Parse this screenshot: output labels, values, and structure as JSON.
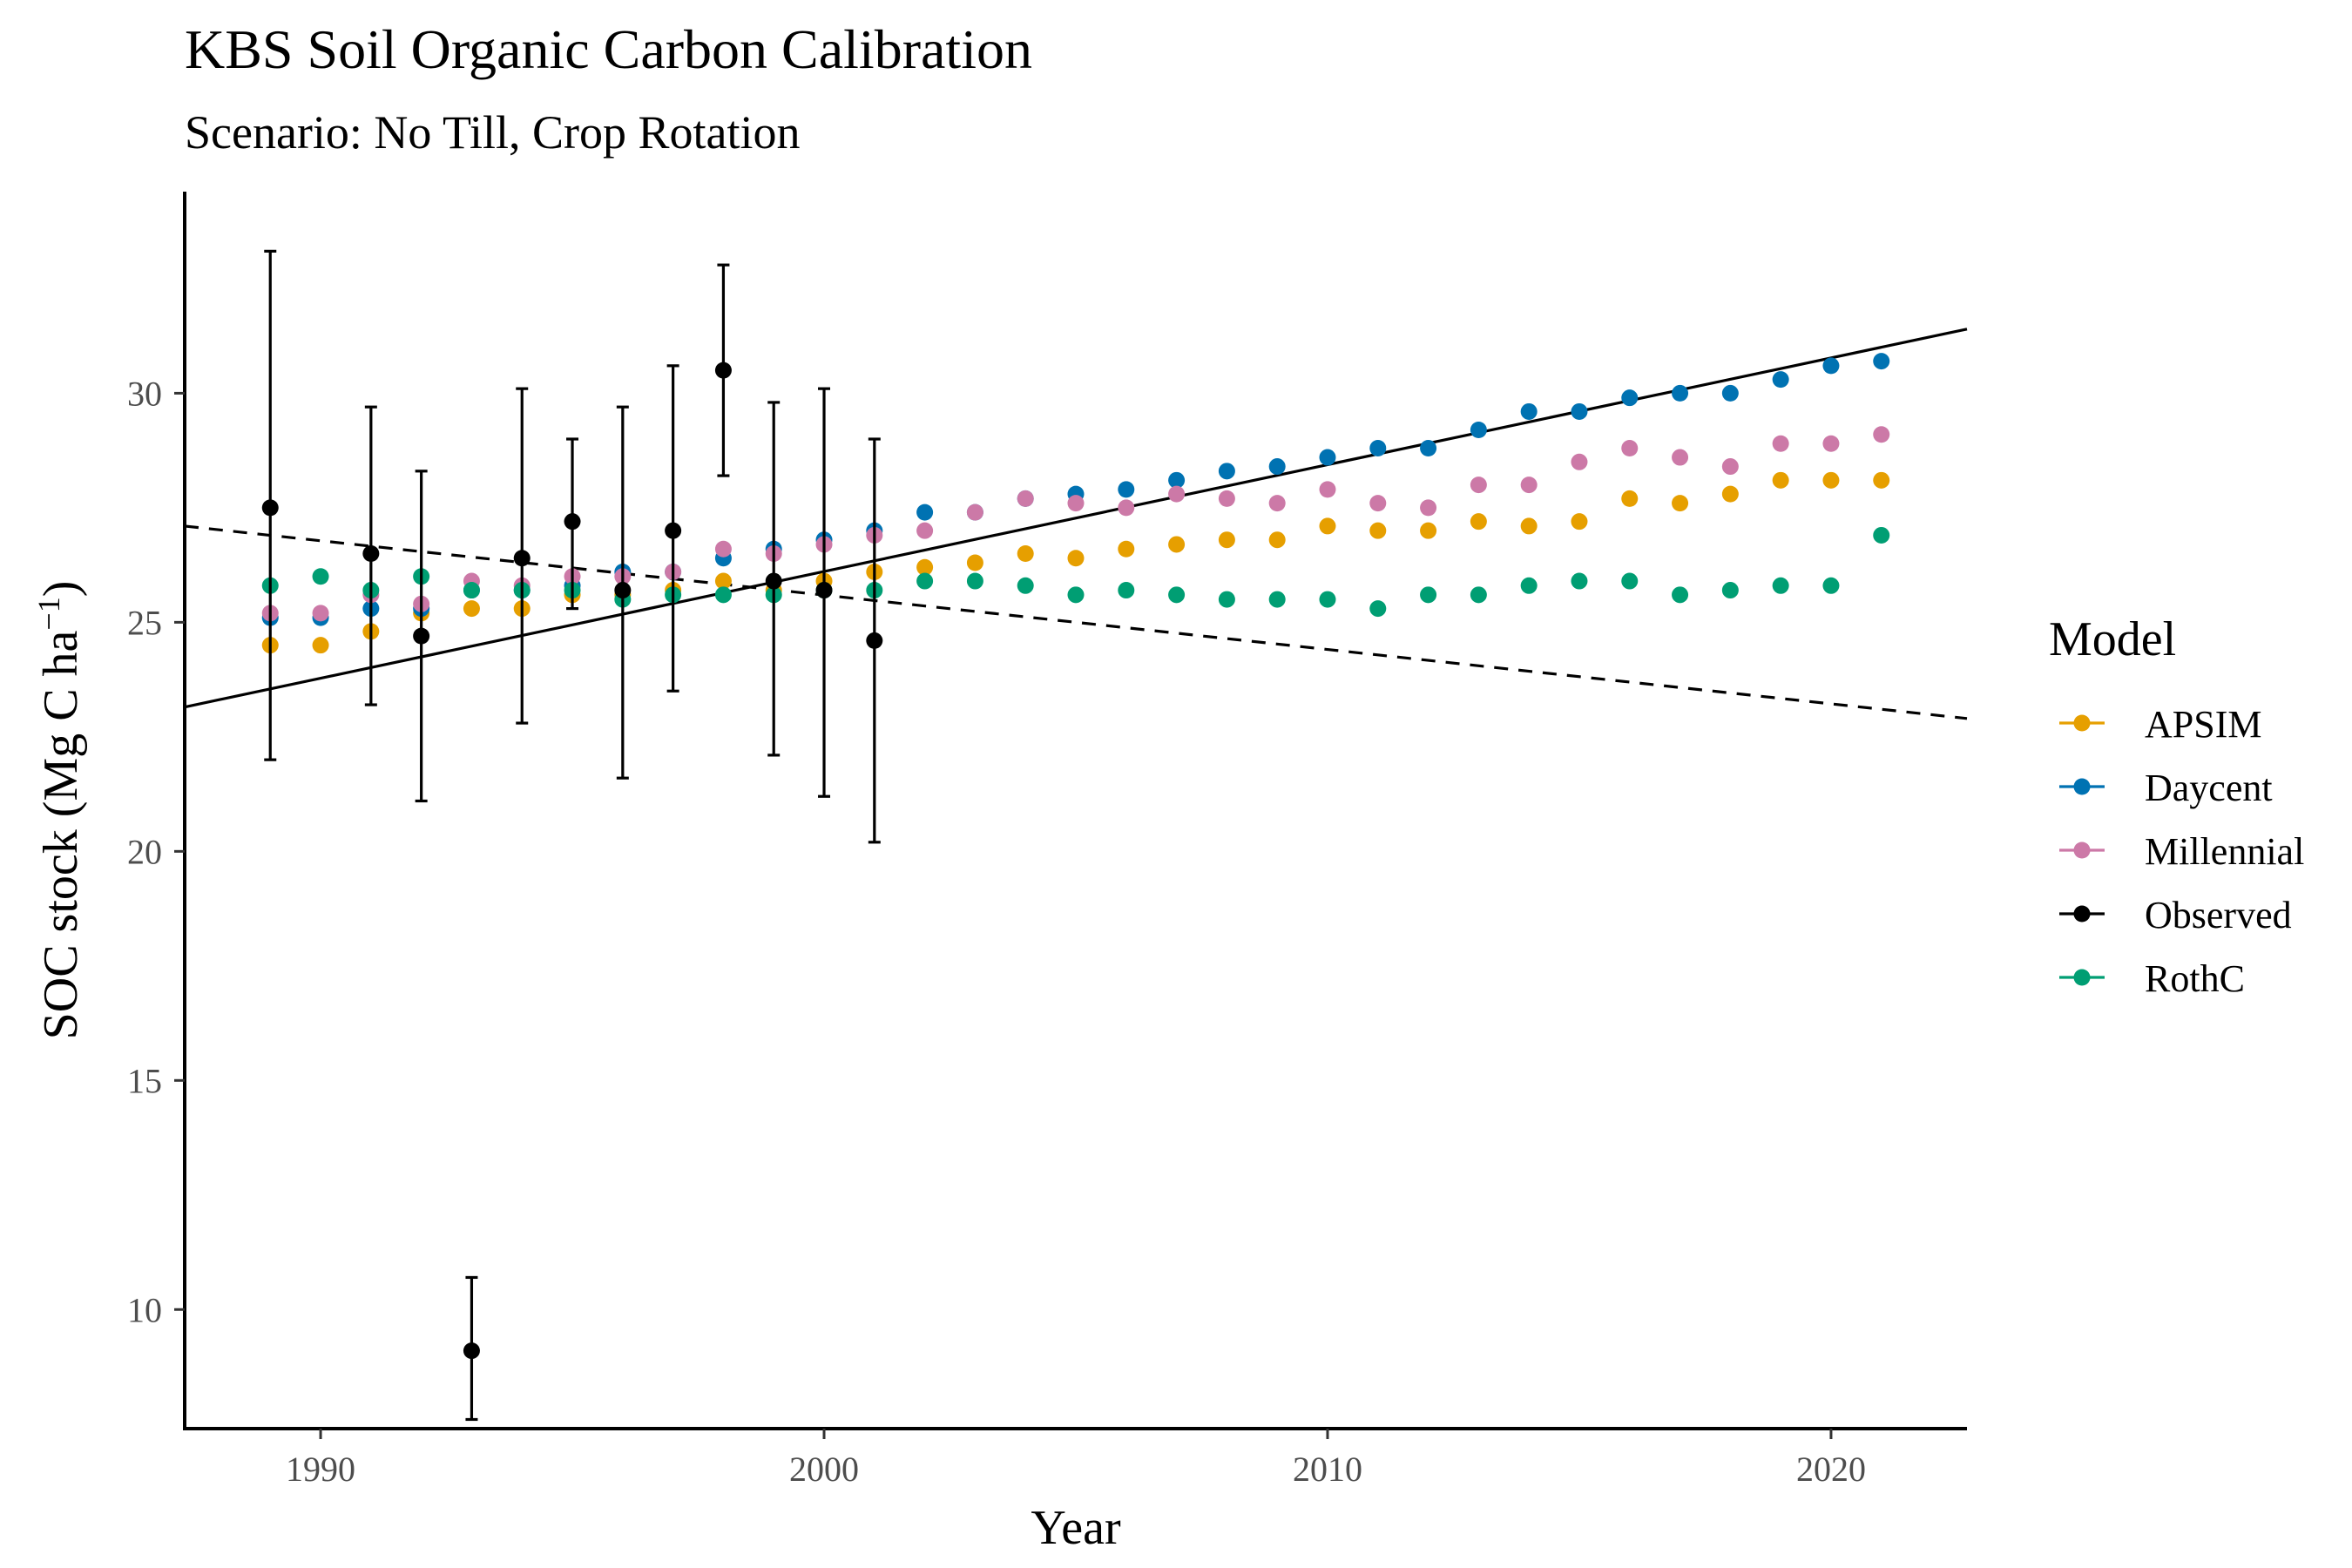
{
  "chart_data": {
    "type": "scatter",
    "title": "KBS Soil Organic Carbon Calibration",
    "subtitle": "Scenario: No Till, Crop Rotation",
    "xlabel": "Year",
    "ylabel": "SOC stock (Mg C ha",
    "ylabel_sup": "−1",
    "ylabel_close": ")",
    "xlim": [
      1987.3,
      2022.7
    ],
    "ylim": [
      7.4,
      34.4
    ],
    "x_ticks": [
      1990,
      2000,
      2010,
      2020
    ],
    "y_ticks": [
      10,
      15,
      20,
      25,
      30
    ],
    "grid": false,
    "legend_title": "Model",
    "legend_position": "right",
    "series": [
      {
        "name": "APSIM",
        "color": "#E69F00",
        "x": [
          1989,
          1990,
          1991,
          1992,
          1993,
          1994,
          1995,
          1996,
          1997,
          1998,
          1999,
          2000,
          2001,
          2002,
          2003,
          2004,
          2005,
          2006,
          2007,
          2008,
          2009,
          2010,
          2011,
          2012,
          2013,
          2014,
          2015,
          2016,
          2017,
          2018,
          2019,
          2020,
          2021
        ],
        "y": [
          24.5,
          24.5,
          24.8,
          25.2,
          25.3,
          25.3,
          25.6,
          25.6,
          25.7,
          25.9,
          25.7,
          25.9,
          26.1,
          26.2,
          26.3,
          26.5,
          26.4,
          26.6,
          26.7,
          26.8,
          26.8,
          27.1,
          27.0,
          27.0,
          27.2,
          27.1,
          27.2,
          27.7,
          27.6,
          27.8,
          28.1,
          28.1,
          28.1
        ]
      },
      {
        "name": "Daycent",
        "color": "#0072B2",
        "x": [
          1989,
          1990,
          1991,
          1992,
          1993,
          1994,
          1995,
          1996,
          1997,
          1998,
          1999,
          2000,
          2001,
          2002,
          2003,
          2004,
          2005,
          2006,
          2007,
          2008,
          2009,
          2010,
          2011,
          2012,
          2013,
          2014,
          2015,
          2016,
          2017,
          2018,
          2019,
          2020,
          2021
        ],
        "y": [
          25.1,
          25.1,
          25.3,
          25.3,
          25.7,
          25.7,
          25.8,
          26.1,
          26.1,
          26.4,
          26.6,
          26.8,
          27.0,
          27.4,
          27.4,
          27.7,
          27.8,
          27.9,
          28.1,
          28.3,
          28.4,
          28.6,
          28.8,
          28.8,
          29.2,
          29.6,
          29.6,
          29.9,
          30.0,
          30.0,
          30.3,
          30.6,
          30.7
        ]
      },
      {
        "name": "Millennial",
        "color": "#CC79A7",
        "x": [
          1989,
          1990,
          1991,
          1992,
          1993,
          1994,
          1995,
          1996,
          1997,
          1998,
          1999,
          2000,
          2001,
          2002,
          2003,
          2004,
          2005,
          2006,
          2007,
          2008,
          2009,
          2010,
          2011,
          2012,
          2013,
          2014,
          2015,
          2016,
          2017,
          2018,
          2019,
          2020,
          2021
        ],
        "y": [
          25.2,
          25.2,
          25.6,
          25.4,
          25.9,
          25.8,
          26.0,
          26.0,
          26.1,
          26.6,
          26.5,
          26.7,
          26.9,
          27.0,
          27.4,
          27.7,
          27.6,
          27.5,
          27.8,
          27.7,
          27.6,
          27.9,
          27.6,
          27.5,
          28.0,
          28.0,
          28.5,
          28.8,
          28.6,
          28.4,
          28.9,
          28.9,
          29.1
        ]
      },
      {
        "name": "Observed",
        "color": "#000000",
        "x": [
          1989,
          1991,
          1992,
          1993,
          1994,
          1995,
          1996,
          1997,
          1998,
          1999,
          2000,
          2001
        ],
        "y": [
          27.5,
          26.5,
          24.7,
          9.1,
          26.4,
          27.2,
          25.7,
          27.0,
          30.5,
          25.9,
          25.7,
          24.6
        ],
        "err_low": [
          22.0,
          23.2,
          21.1,
          7.6,
          22.8,
          25.3,
          21.6,
          23.5,
          28.2,
          22.1,
          21.2,
          20.2
        ],
        "err_high": [
          33.1,
          29.7,
          28.3,
          10.7,
          30.1,
          29.0,
          29.7,
          30.6,
          32.8,
          29.8,
          30.1,
          29.0
        ]
      },
      {
        "name": "RothC",
        "color": "#009E73",
        "x": [
          1989,
          1990,
          1991,
          1992,
          1993,
          1994,
          1995,
          1996,
          1997,
          1998,
          1999,
          2000,
          2001,
          2002,
          2003,
          2004,
          2005,
          2006,
          2007,
          2008,
          2009,
          2010,
          2011,
          2012,
          2013,
          2014,
          2015,
          2016,
          2017,
          2018,
          2019,
          2020,
          2021
        ],
        "y": [
          25.8,
          26.0,
          25.7,
          26.0,
          25.7,
          25.7,
          25.7,
          25.5,
          25.6,
          25.6,
          25.6,
          25.7,
          25.7,
          25.9,
          25.9,
          25.8,
          25.6,
          25.7,
          25.6,
          25.5,
          25.5,
          25.5,
          25.3,
          25.6,
          25.6,
          25.8,
          25.9,
          25.9,
          25.6,
          25.7,
          25.8,
          25.8,
          26.9
        ]
      }
    ],
    "trend_lines": [
      {
        "name": "observed-trend-solid",
        "style": "solid",
        "x": [
          1987.3,
          2022.7
        ],
        "y": [
          23.15,
          31.4
        ]
      },
      {
        "name": "observed-trend-dashed",
        "style": "dashed",
        "x": [
          1987.3,
          2022.7
        ],
        "y": [
          27.1,
          22.9
        ]
      }
    ]
  }
}
